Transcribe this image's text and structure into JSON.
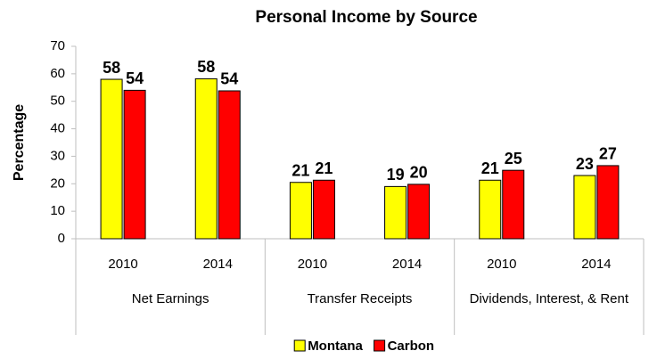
{
  "chart_data": {
    "type": "bar",
    "title": "Personal Income by Source",
    "y_label": "Percentage",
    "categories": [
      "2010",
      "2014",
      "2010",
      "2014",
      "2010",
      "2014"
    ],
    "groups": [
      {
        "name": "Net Earnings",
        "span": 2
      },
      {
        "name": "Transfer Receipts",
        "span": 2
      },
      {
        "name": "Dividends, Interest, & Rent",
        "span": 2
      }
    ],
    "series": [
      {
        "name": "Montana",
        "color": "#ffff00",
        "values": [
          58,
          58.2,
          20.5,
          19,
          21.3,
          23
        ],
        "value_labels": [
          "58",
          "58",
          "21",
          "19",
          "21",
          "23"
        ]
      },
      {
        "name": "Carbon",
        "color": "#ff0000",
        "values": [
          54,
          53.8,
          21.3,
          19.8,
          24.9,
          26.6
        ],
        "value_labels": [
          "54",
          "54",
          "21",
          "20",
          "25",
          "27"
        ]
      }
    ],
    "ylim": [
      0,
      70
    ],
    "yticks": [
      0,
      10,
      20,
      30,
      40,
      50,
      60,
      70
    ],
    "legend": "bottom"
  }
}
